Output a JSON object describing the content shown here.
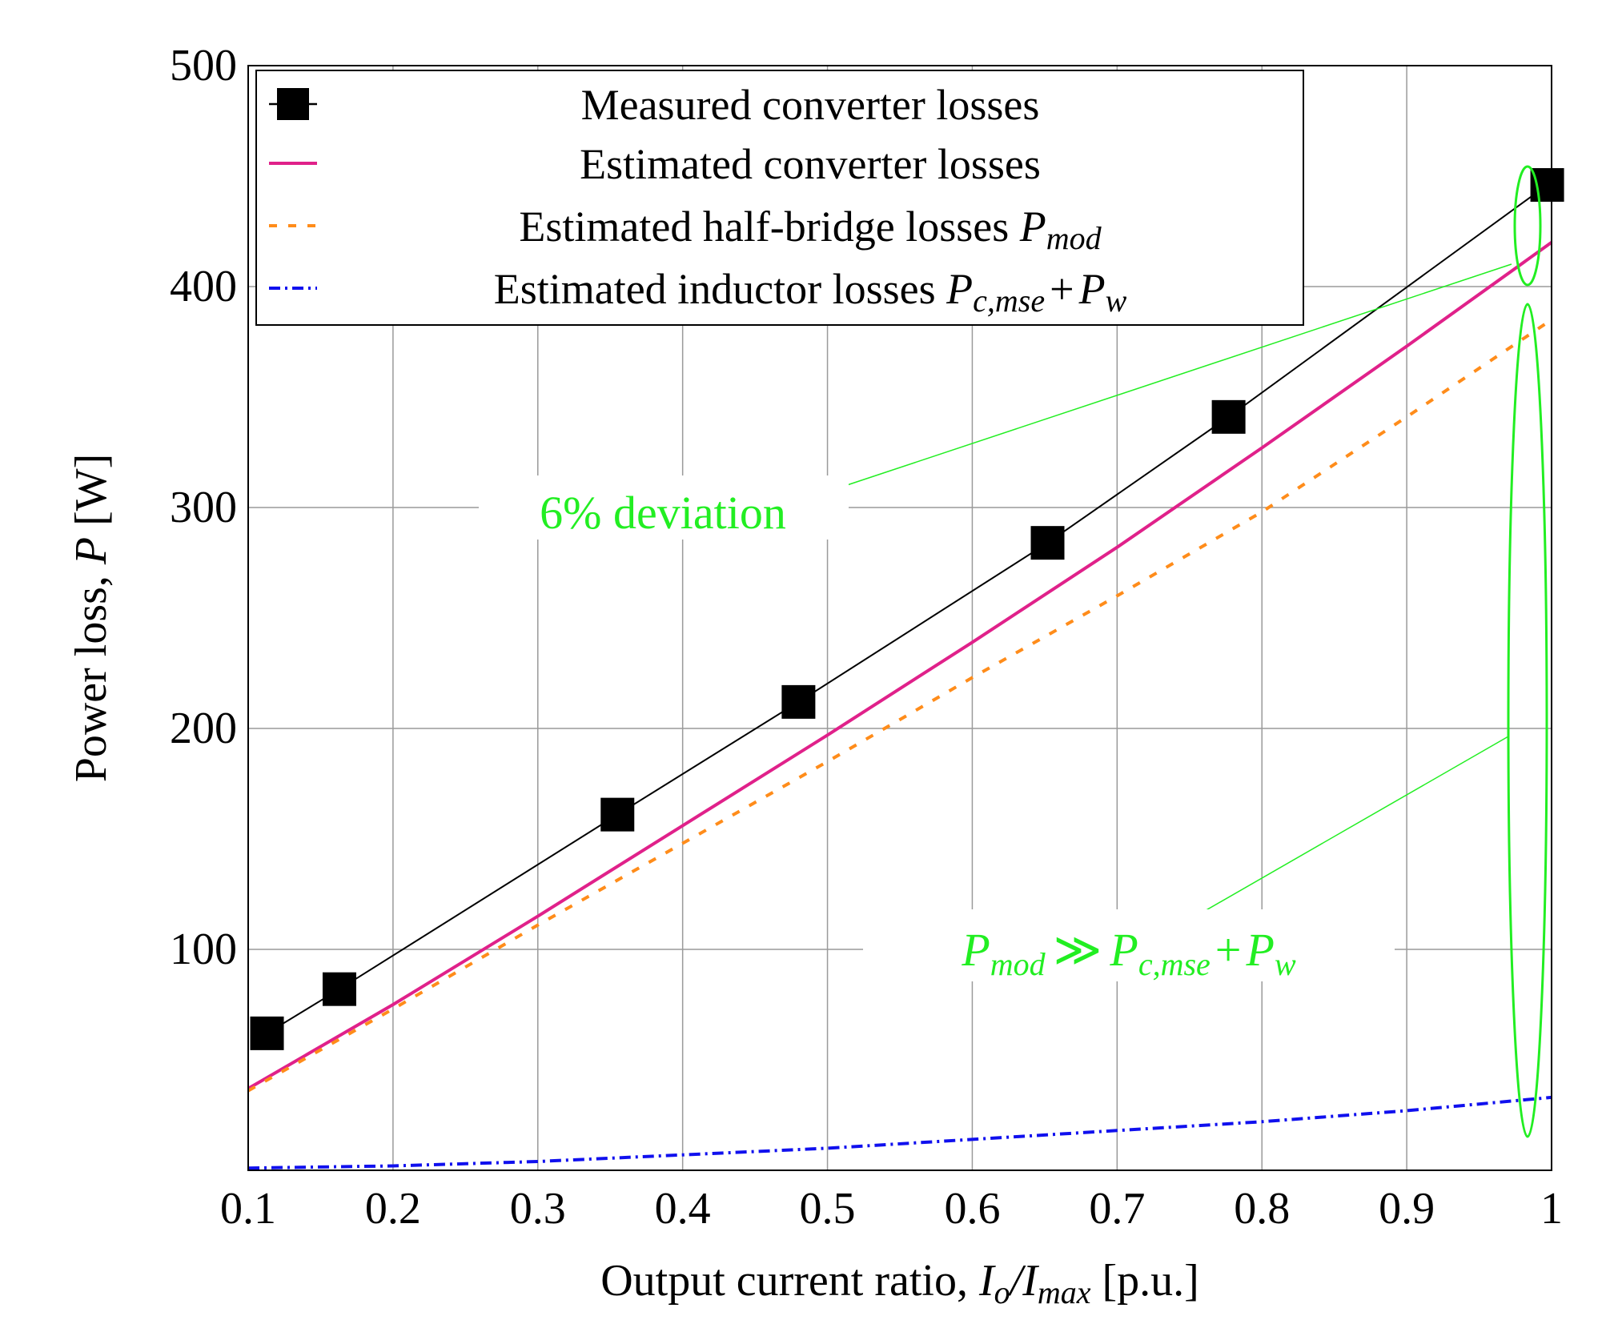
{
  "chart_data": {
    "type": "line",
    "x_axis": {
      "label_prefix": "Output current ratio, ",
      "label_var_num": "I",
      "label_var_num_sub": "o",
      "label_slash": "/",
      "label_var_den": "I",
      "label_var_den_sub": "max",
      "label_suffix": " [p.u.]",
      "range": [
        0.1,
        1.0
      ],
      "ticks": [
        0.1,
        0.2,
        0.3,
        0.4,
        0.5,
        0.6,
        0.7,
        0.8,
        0.9,
        1.0
      ],
      "tick_labels": [
        "0.1",
        "0.2",
        "0.3",
        "0.4",
        "0.5",
        "0.6",
        "0.7",
        "0.8",
        "0.9",
        "1"
      ]
    },
    "y_axis": {
      "label_prefix": "Power loss, ",
      "label_var": "P",
      "label_suffix": " [W]",
      "range": [
        0,
        500
      ],
      "ticks": [
        100,
        200,
        300,
        400,
        500
      ],
      "tick_labels": [
        "100",
        "200",
        "300",
        "400",
        "500"
      ]
    },
    "grid": true,
    "legend_position": "top-left",
    "series": [
      {
        "name": "Measured converter losses",
        "style": "line-square",
        "color": "#000000",
        "x": [
          0.113,
          0.163,
          0.355,
          0.48,
          0.652,
          0.777,
          0.997
        ],
        "y": [
          62,
          82,
          161,
          212,
          284,
          341,
          446
        ]
      },
      {
        "name": "Estimated converter losses",
        "style": "solid",
        "color": "#e0218a",
        "x": [
          0.1,
          0.2,
          0.3,
          0.4,
          0.5,
          0.6,
          0.7,
          0.8,
          0.9,
          1.0
        ],
        "y": [
          37,
          75,
          115,
          156,
          197,
          239,
          282,
          327,
          373,
          420
        ]
      },
      {
        "name": "Estimated half-bridge losses",
        "name_var": "P",
        "name_sub": "mod",
        "style": "dashed",
        "color": "#ff8c1a",
        "x": [
          0.1,
          0.2,
          0.3,
          0.4,
          0.5,
          0.6,
          0.7,
          0.8,
          0.9,
          1.0
        ],
        "y": [
          36,
          73,
          111,
          148,
          185,
          223,
          260,
          298,
          341,
          385
        ]
      },
      {
        "name": "Estimated inductor losses",
        "name_var1": "P",
        "name_sub1": "c,mse",
        "name_plus": "+",
        "name_var2": "P",
        "name_sub2": "w",
        "style": "dash-dot",
        "color": "#1010ee",
        "x": [
          0.1,
          0.2,
          0.3,
          0.4,
          0.5,
          0.6,
          0.7,
          0.8,
          0.9,
          1.0
        ],
        "y": [
          1,
          2,
          4,
          7,
          10,
          14,
          18,
          22,
          27,
          33
        ]
      }
    ],
    "annotations": [
      {
        "id": "deviation",
        "text": "6% deviation"
      },
      {
        "id": "pmod-dominance",
        "var1": "P",
        "sub1": "mod",
        "op": "≫",
        "var2": "P",
        "sub2": "c,mse",
        "plus": "+",
        "var3": "P",
        "sub3": "w"
      }
    ]
  }
}
